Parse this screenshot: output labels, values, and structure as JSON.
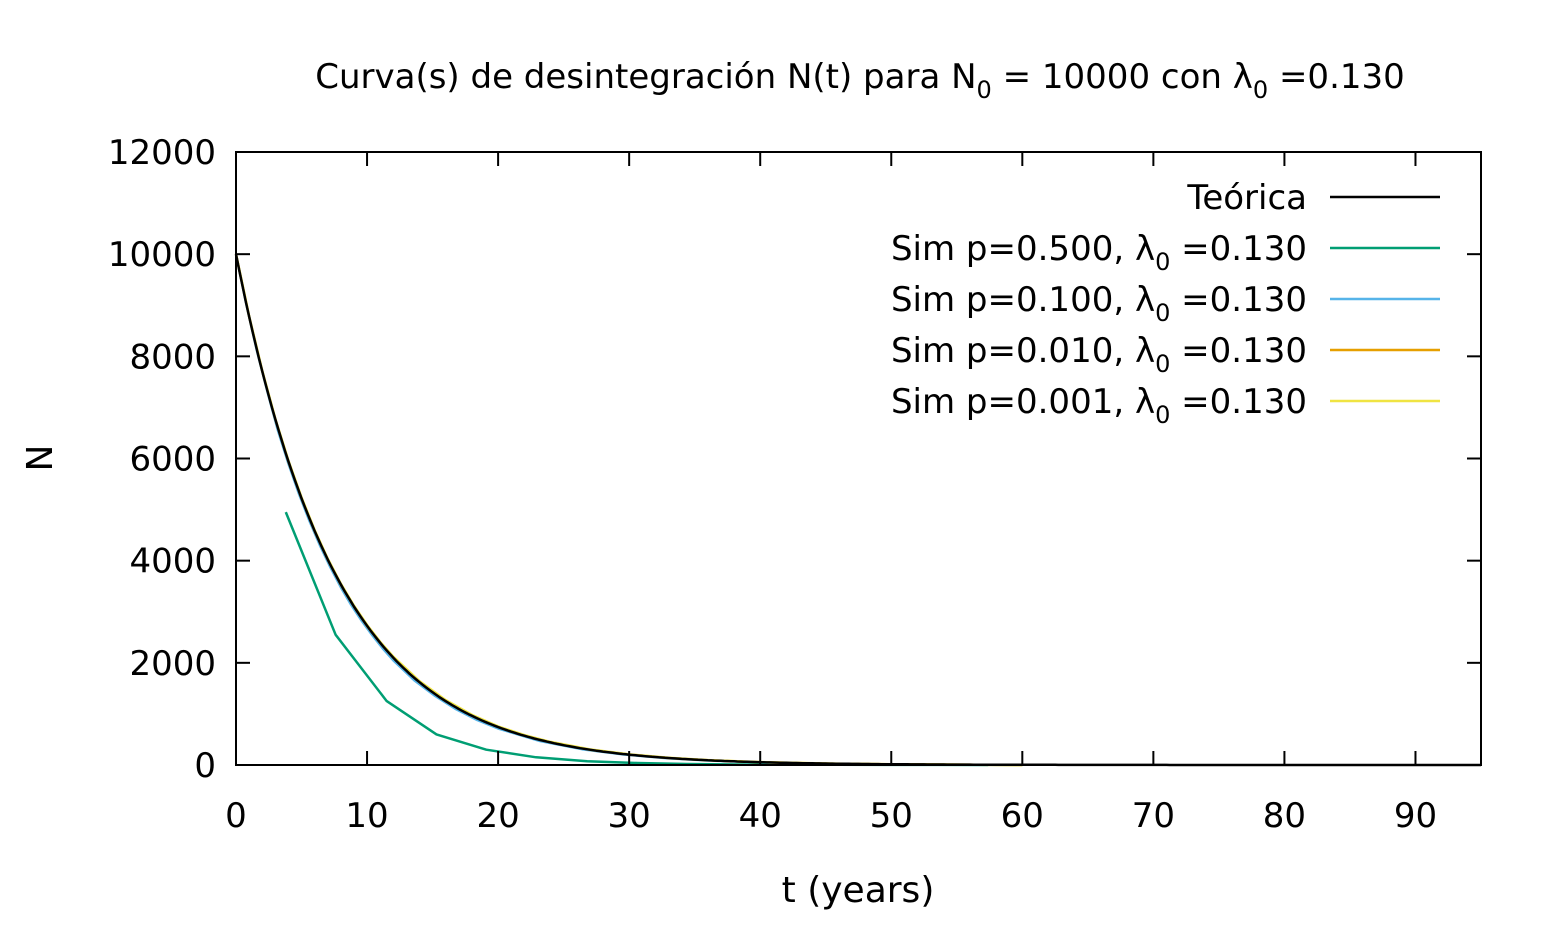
{
  "chart_data": {
    "type": "line",
    "title": {
      "prefix": "Curva(s) de desintegración N(t) para N",
      "n_sub": "0",
      "middle": " = 10000  con λ",
      "l_sub": "0",
      "suffix": " =0.130"
    },
    "xlabel": "t (years)",
    "ylabel": "N",
    "xlim": [
      0,
      95
    ],
    "ylim": [
      0,
      12000
    ],
    "xticks": [
      0,
      10,
      20,
      30,
      40,
      50,
      60,
      70,
      80,
      90
    ],
    "yticks": [
      0,
      2000,
      4000,
      6000,
      8000,
      10000,
      12000
    ],
    "xtick_labels": [
      "0",
      "10",
      "20",
      "30",
      "40",
      "50",
      "60",
      "70",
      "80",
      "90"
    ],
    "ytick_labels": [
      "0",
      "2000",
      "4000",
      "6000",
      "8000",
      "10000",
      "12000"
    ],
    "grid": false,
    "legend_position": "top-right",
    "series": [
      {
        "name": "Teórica",
        "name_sub": "",
        "name_suffix": "",
        "color": "#000000",
        "kind": "function",
        "N0": 10000,
        "lambda": 0.13
      },
      {
        "name": "Sim p=0.500, λ",
        "name_sub": "0",
        "name_suffix": " =0.130",
        "color": "#009e73",
        "x": [
          3.8,
          7.6,
          11.5,
          15.3,
          19.1,
          22.9,
          26.8,
          30.6,
          34.4,
          38.2,
          42.1,
          45.9,
          49.7,
          53.5,
          57.4
        ],
        "y": [
          4950,
          2550,
          1250,
          600,
          300,
          150,
          75,
          40,
          20,
          10,
          5,
          3,
          2,
          1,
          0
        ]
      },
      {
        "name": "Sim p=0.100, λ",
        "name_sub": "0",
        "name_suffix": " =0.130",
        "color": "#56b4e9",
        "x": [
          0,
          0.8,
          1.6,
          2.4,
          3.2,
          4.0,
          4.8,
          5.6,
          6.4,
          7.2,
          8.0,
          8.8,
          9.6,
          10.4,
          11.2,
          12.0,
          13.6,
          15.2,
          16.8,
          18.4,
          20.0,
          23.2,
          26.4,
          29.6,
          32.8,
          36.0,
          40.0,
          45.0,
          50.0,
          60.0
        ],
        "y": [
          10000,
          9000,
          8100,
          7300,
          6550,
          5900,
          5310,
          4780,
          4300,
          3870,
          3480,
          3130,
          2820,
          2540,
          2280,
          2050,
          1660,
          1350,
          1090,
          880,
          715,
          470,
          310,
          205,
          135,
          88,
          50,
          25,
          12,
          0
        ]
      },
      {
        "name": "Sim p=0.010, λ",
        "name_sub": "0",
        "name_suffix": " =0.130",
        "color": "#e69f00",
        "x": [
          0,
          1,
          2,
          3,
          4,
          5,
          6,
          7,
          8,
          9,
          10,
          11,
          12,
          14,
          16,
          18,
          20,
          22,
          24,
          27,
          30,
          33,
          36,
          40,
          45,
          50,
          55,
          60
        ],
        "y": [
          10000,
          8780,
          7710,
          6770,
          5940,
          5220,
          4580,
          4020,
          3530,
          3100,
          2720,
          2390,
          2100,
          1620,
          1250,
          965,
          745,
          575,
          445,
          300,
          205,
          138,
          93,
          55,
          28,
          14,
          7,
          0
        ]
      },
      {
        "name": "Sim p=0.001, λ",
        "name_sub": "0",
        "name_suffix": " =0.130",
        "color": "#f0e442",
        "x": [
          0,
          1,
          2,
          3,
          4,
          5,
          6,
          7,
          8,
          9,
          10,
          11,
          12,
          14,
          16,
          18,
          20,
          22,
          24,
          27,
          30,
          33,
          36,
          40,
          45,
          50,
          55,
          60
        ],
        "y": [
          10000,
          8790,
          7720,
          6780,
          5960,
          5240,
          4600,
          4040,
          3550,
          3120,
          2740,
          2410,
          2120,
          1640,
          1270,
          980,
          755,
          585,
          452,
          305,
          208,
          140,
          95,
          56,
          29,
          14,
          7,
          0
        ]
      }
    ]
  }
}
